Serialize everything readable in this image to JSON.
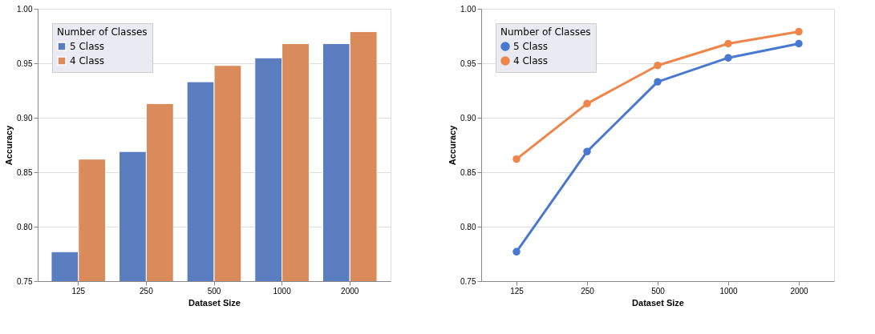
{
  "chart_data": [
    {
      "type": "bar",
      "categories": [
        "125",
        "250",
        "500",
        "1000",
        "2000"
      ],
      "series": [
        {
          "name": "5 Class",
          "color": "#5a7dc0",
          "values": [
            0.777,
            0.869,
            0.933,
            0.955,
            0.968
          ]
        },
        {
          "name": "4 Class",
          "color": "#da8b5c",
          "values": [
            0.862,
            0.913,
            0.948,
            0.968,
            0.979
          ]
        }
      ],
      "xlabel": "Dataset Size",
      "ylabel": "Accuracy",
      "legend_title": "Number of Classes",
      "legend": "top left",
      "ylim": [
        0.75,
        1.0
      ],
      "yticks": [
        {
          "value": 0.75,
          "label": "0.75"
        },
        {
          "value": 0.8,
          "label": "0.80"
        },
        {
          "value": 0.85,
          "label": "0.85"
        },
        {
          "value": 0.9,
          "label": "0.90"
        },
        {
          "value": 0.95,
          "label": "0.95"
        },
        {
          "value": 1.0,
          "label": "1.00"
        }
      ],
      "grid": "y"
    },
    {
      "type": "line",
      "marker": "circle",
      "categories": [
        "125",
        "250",
        "500",
        "1000",
        "2000"
      ],
      "series": [
        {
          "name": "5 Class",
          "color": "#4878d0",
          "values": [
            0.777,
            0.869,
            0.933,
            0.955,
            0.968
          ]
        },
        {
          "name": "4 Class",
          "color": "#ee854a",
          "values": [
            0.862,
            0.913,
            0.948,
            0.968,
            0.979
          ]
        }
      ],
      "xlabel": "Dataset Size",
      "ylabel": "Accuracy",
      "legend_title": "Number of Classes",
      "legend": "top left",
      "ylim": [
        0.75,
        1.0
      ],
      "yticks": [
        {
          "value": 0.75,
          "label": "0.75"
        },
        {
          "value": 0.8,
          "label": "0.80"
        },
        {
          "value": 0.85,
          "label": "0.85"
        },
        {
          "value": 0.9,
          "label": "0.90"
        },
        {
          "value": 0.95,
          "label": "0.95"
        },
        {
          "value": 1.0,
          "label": "1.00"
        }
      ],
      "grid": "y"
    }
  ]
}
